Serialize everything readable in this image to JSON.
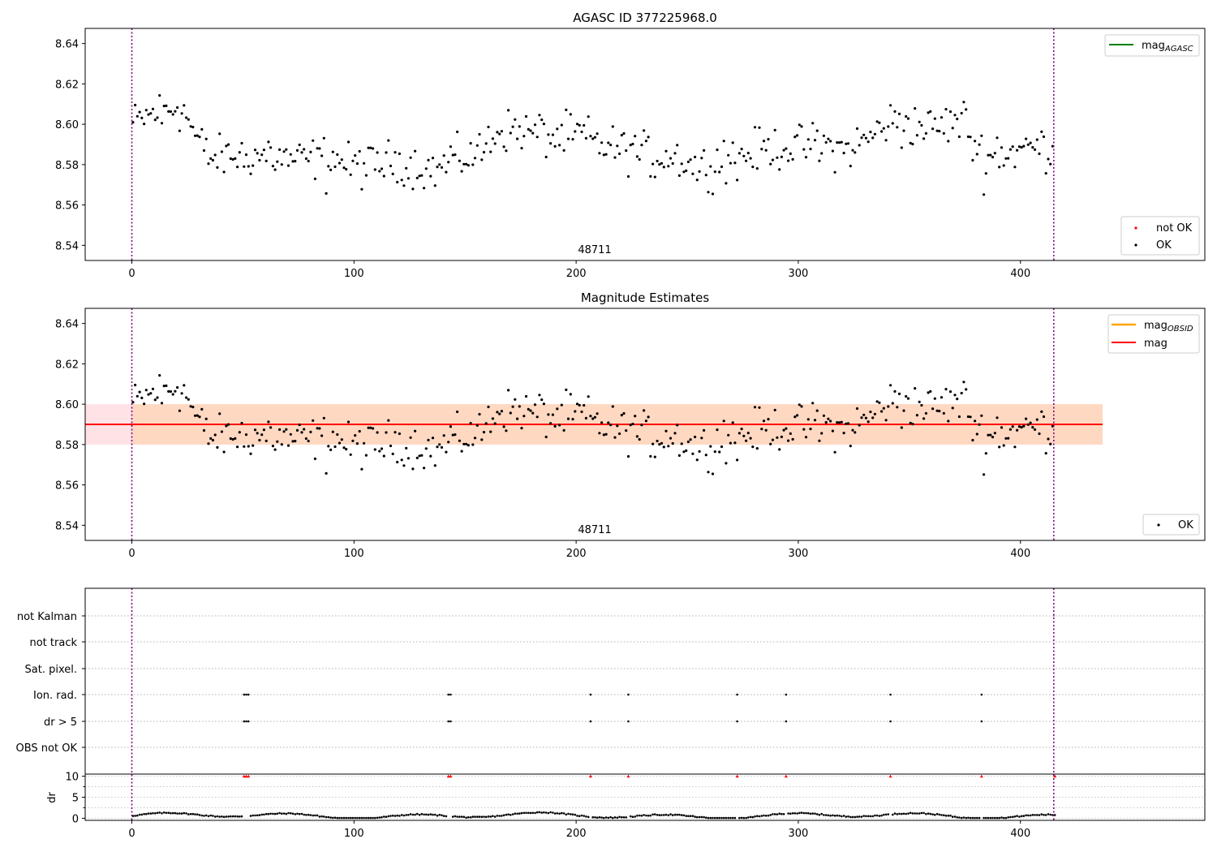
{
  "chart_data": [
    {
      "type": "scatter",
      "title": "AGASC ID 377225968.0",
      "xlim": [
        -21,
        483
      ],
      "ylim": [
        8.5325,
        8.6475
      ],
      "xticks": [
        "0",
        "100",
        "200",
        "300",
        "400"
      ],
      "yticks": [
        "8.54",
        "8.56",
        "8.58",
        "8.60",
        "8.62",
        "8.64"
      ],
      "obsid_label": "48711",
      "obsid_bounds": [
        0,
        415
      ],
      "line_legend": {
        "main": "mag",
        "sub": "AGASC",
        "color": "#008000"
      },
      "marker_legend": [
        {
          "label": "not OK",
          "color": "#ff0000"
        },
        {
          "label": "OK",
          "color": "#000000"
        }
      ],
      "series": [
        {
          "name": "OK",
          "n_points": 415,
          "x_range": [
            0,
            415
          ],
          "y_range": [
            8.565,
            8.618
          ]
        }
      ]
    },
    {
      "type": "scatter",
      "title": "Magnitude Estimates",
      "xlim": [
        -21,
        483
      ],
      "ylim": [
        8.5325,
        8.6475
      ],
      "xticks": [
        "0",
        "100",
        "200",
        "300",
        "400"
      ],
      "yticks": [
        "8.54",
        "8.56",
        "8.58",
        "8.60",
        "8.62",
        "8.64"
      ],
      "obsid_label": "48711",
      "mag_obsid": 8.59,
      "mag": 8.59,
      "band_obsid": [
        8.58,
        8.6
      ],
      "band_mag": [
        8.58,
        8.6
      ],
      "band_obsid_x": [
        -21,
        437
      ],
      "line_legend": [
        {
          "main": "mag",
          "sub": "OBSID",
          "color": "#ffa500"
        },
        {
          "main": "mag",
          "sub": "",
          "color": "#ff0000"
        }
      ],
      "marker_legend": [
        {
          "label": "OK",
          "color": "#000000"
        }
      ],
      "series": [
        {
          "name": "OK",
          "n_points": 415,
          "x_range": [
            0,
            415
          ],
          "y_range": [
            8.565,
            8.618
          ]
        }
      ]
    },
    {
      "type": "scatter",
      "title": "",
      "xlim": [
        -21,
        483
      ],
      "xticks": [
        "0",
        "100",
        "200",
        "300",
        "400"
      ],
      "flag_rows": [
        "not Kalman",
        "not track",
        "Sat. pixel.",
        "Ion. rad.",
        "dr > 5",
        "OBS not OK"
      ],
      "flag_x": [
        50,
        51,
        52,
        142,
        143,
        206,
        223,
        272,
        294,
        341,
        382
      ],
      "dr_ylabel": "dr",
      "dr_ylim": [
        -0.5,
        10.5
      ],
      "dr_yticks": [
        "0",
        "5",
        "10"
      ],
      "dr_clipped_x": [
        50,
        51,
        52,
        142,
        143,
        206,
        223,
        272,
        294,
        341,
        382,
        415
      ],
      "dr_clip_value": 10
    }
  ]
}
